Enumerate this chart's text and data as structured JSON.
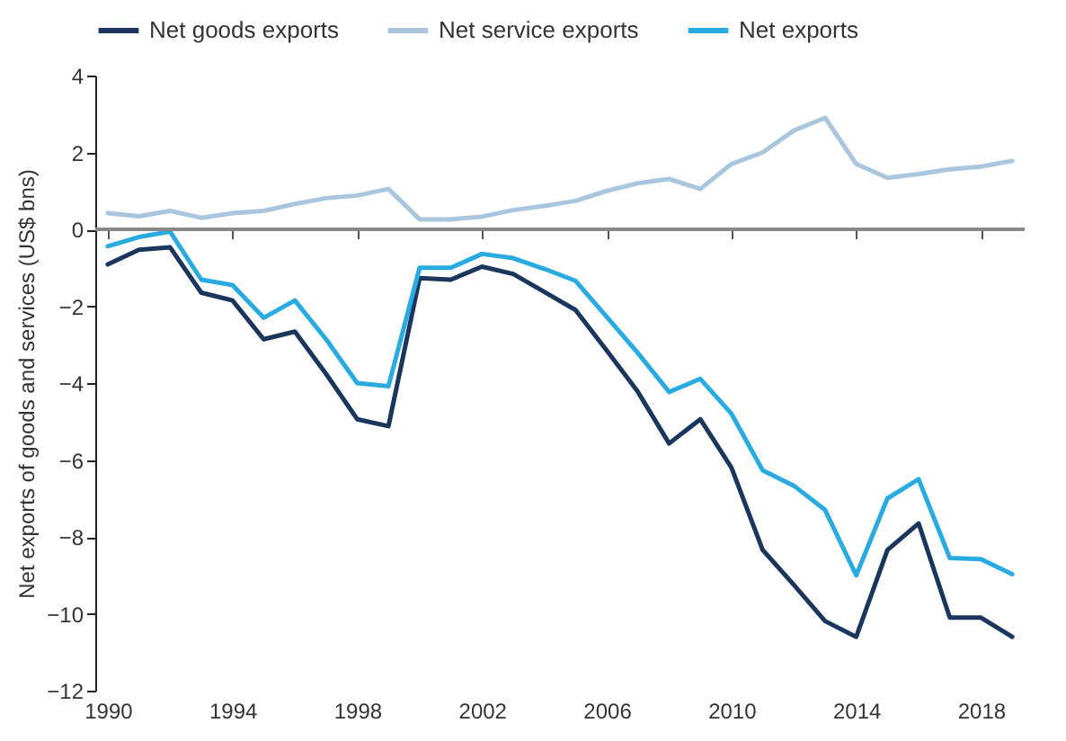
{
  "chart_data": {
    "type": "line",
    "ylabel": "Net exports of goods and services (US$ bns)",
    "x": [
      1990,
      1991,
      1992,
      1993,
      1994,
      1995,
      1996,
      1997,
      1998,
      1999,
      2000,
      2001,
      2002,
      2003,
      2004,
      2005,
      2006,
      2007,
      2008,
      2009,
      2010,
      2011,
      2012,
      2013,
      2014,
      2015,
      2016,
      2017,
      2018,
      2019
    ],
    "series": [
      {
        "name": "Net goods exports",
        "color": "#1b365d",
        "values": [
          -0.91,
          -0.53,
          -0.47,
          -1.65,
          -1.85,
          -2.86,
          -2.66,
          -3.76,
          -4.94,
          -5.12,
          -1.27,
          -1.31,
          -0.97,
          -1.16,
          -1.63,
          -2.1,
          -3.15,
          -4.23,
          -5.57,
          -4.94,
          -6.2,
          -8.34,
          -9.25,
          -10.19,
          -10.6,
          -8.34,
          -7.65,
          -10.1,
          -10.1,
          -10.6
        ]
      },
      {
        "name": "Net service exports",
        "color": "#a9c6de",
        "values": [
          0.42,
          0.34,
          0.48,
          0.3,
          0.42,
          0.48,
          0.66,
          0.81,
          0.88,
          1.05,
          0.26,
          0.26,
          0.33,
          0.5,
          0.61,
          0.74,
          1.0,
          1.2,
          1.31,
          1.05,
          1.7,
          2.0,
          2.57,
          2.9,
          1.7,
          1.34,
          1.44,
          1.56,
          1.63,
          1.78
        ]
      },
      {
        "name": "Net exports",
        "color": "#29abe2",
        "values": [
          -0.44,
          -0.2,
          -0.06,
          -1.31,
          -1.45,
          -2.3,
          -1.85,
          -2.86,
          -4.0,
          -4.08,
          -1.0,
          -1.0,
          -0.64,
          -0.75,
          -1.03,
          -1.34,
          -2.28,
          -3.22,
          -4.23,
          -3.89,
          -4.8,
          -6.27,
          -6.67,
          -7.3,
          -9.0,
          -7.0,
          -6.5,
          -8.55,
          -8.58,
          -8.97
        ]
      }
    ],
    "xlim": [
      1989.6,
      2019.4
    ],
    "xticks": [
      1990,
      1994,
      1998,
      2002,
      2006,
      2010,
      2014,
      2018
    ],
    "ylim": [
      -12,
      4
    ],
    "yticks": [
      -12,
      -10,
      -8,
      -6,
      -4,
      -2,
      0,
      2,
      4
    ],
    "ref_lines": [
      {
        "axis": "y",
        "value": 0,
        "color": "#888888"
      }
    ],
    "grid": false,
    "legend": "top",
    "marker": "none",
    "line_style": "solid"
  }
}
